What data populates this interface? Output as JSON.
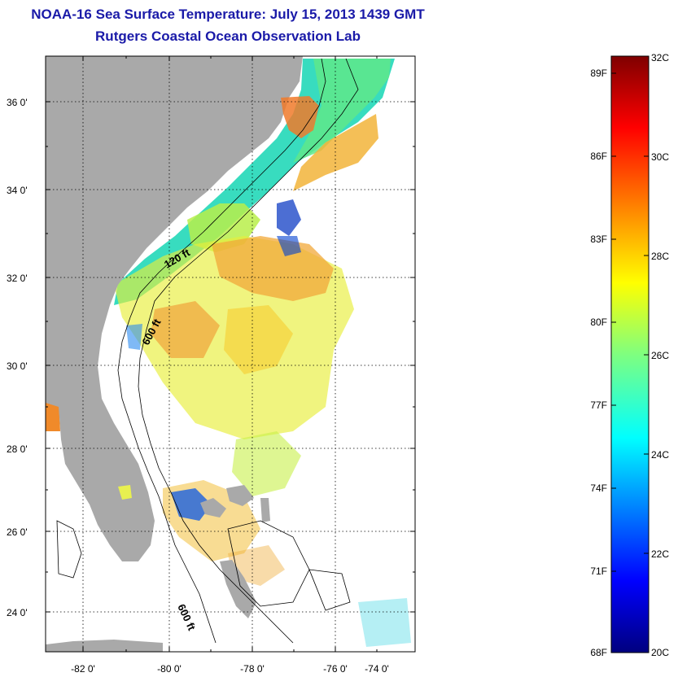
{
  "header": {
    "title": "NOAA-16 Sea Surface Temperature:  July 15, 2013 1439 GMT",
    "subtitle": "Rutgers Coastal Ocean Observation Lab"
  },
  "map": {
    "lat_labels": [
      "36 0'",
      "34 0'",
      "32 0'",
      "30 0'",
      "28 0'",
      "26 0'",
      "24 0'"
    ],
    "lon_labels": [
      "-82 0'",
      "-80 0'",
      "-78 0'",
      "-76 0'",
      "-74 0'"
    ],
    "contour_labels": [
      "120 ft",
      "600 ft",
      "600 ft"
    ],
    "colors": {
      "land": "#a9a9a9",
      "no_data": "#ffffff"
    }
  },
  "colorbar": {
    "fahrenheit_labels": [
      "89F",
      "86F",
      "83F",
      "80F",
      "77F",
      "74F",
      "71F",
      "68F"
    ],
    "celsius_labels": [
      "32C",
      "30C",
      "28C",
      "26C",
      "24C",
      "22C",
      "20C"
    ],
    "range_c": [
      20,
      32
    ],
    "colormap": "jet"
  }
}
